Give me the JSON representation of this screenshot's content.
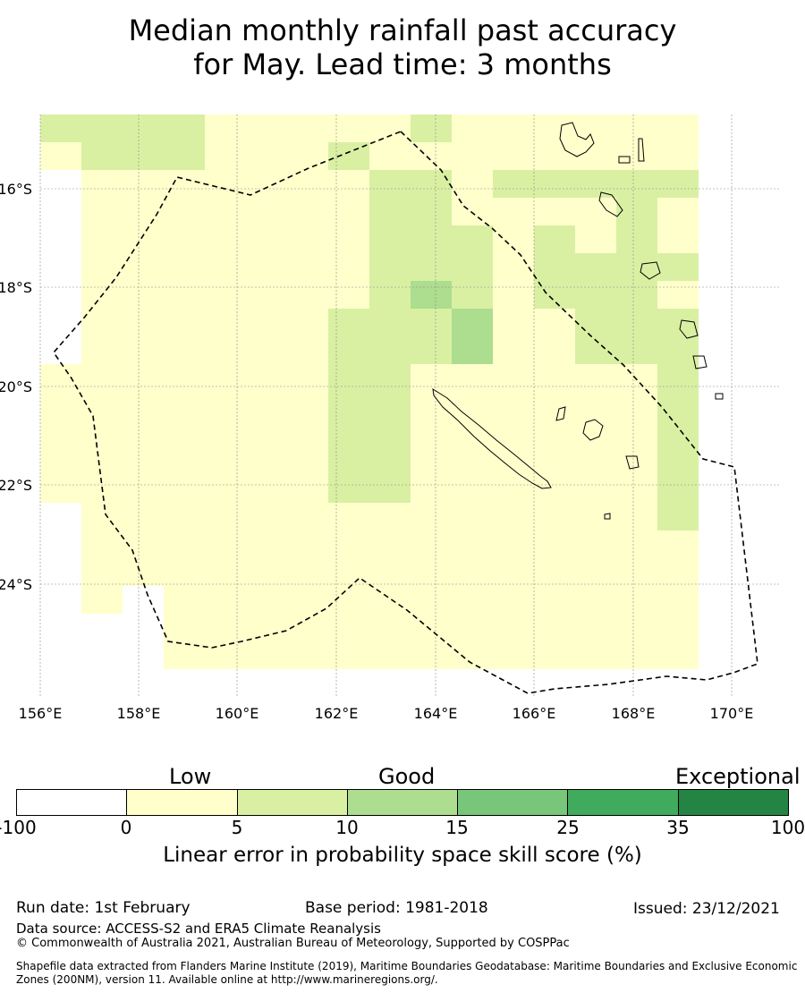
{
  "title": {
    "line1": "Median monthly rainfall past accuracy",
    "line2": "for May. Lead time: 3 months"
  },
  "map": {
    "lon_ticks": [
      "156°E",
      "158°E",
      "160°E",
      "162°E",
      "164°E",
      "166°E",
      "168°E",
      "170°E"
    ],
    "lat_ticks": [
      "16°S",
      "18°S",
      "20°S",
      "22°S",
      "24°S"
    ],
    "lon_range": [
      156,
      171
    ],
    "lat_range": [
      -14.7,
      -26.5
    ],
    "grid_rows": [
      "2222111112111111",
      "1222111211111111",
      "0111111122122222",
      "0111111122111121",
      "0111111122212121",
      "0111111122212222",
      "0111111123212221",
      "0111111222311222",
      "0111111222311222",
      "1111111221111112",
      "1111111221111112",
      "1111111221111112",
      "1111111221111112",
      "1111111221111112",
      "0111111111111112",
      "0111111111111111",
      "0111111111111111",
      "0101111111111111",
      "0001111111111111",
      "0001111111111111"
    ],
    "colors": [
      "#ffffff",
      "#ffffcc",
      "#d9f0a3",
      "#addd8e",
      "#78c679",
      "#41ab5d",
      "#238443"
    ]
  },
  "colorbar": {
    "caption_low": "Low",
    "caption_good": "Good",
    "caption_exceptional": "Exceptional",
    "ticks": [
      "-100",
      "0",
      "5",
      "10",
      "15",
      "25",
      "35",
      "100"
    ],
    "label": "Linear error in probability space skill score (%)"
  },
  "footer": {
    "run_date": "Run date: 1st February",
    "base_period": "Base period: 1981-2018",
    "issued": "Issued: 23/12/2021",
    "data_source": "Data source: ACCESS-S2 and ERA5 Climate Reanalysis",
    "copyright": "© Commonwealth of Australia 2021, Australian Bureau of Meteorology, Supported by COSPPac",
    "shapefile_line1": "Shapefile data extracted from Flanders Marine Institute (2019), Maritime Boundaries Geodatabase: Maritime Boundaries and Exclusive Economic",
    "shapefile_line2": "Zones (200NM), version 11. Available online at http://www.marineregions.org/."
  }
}
